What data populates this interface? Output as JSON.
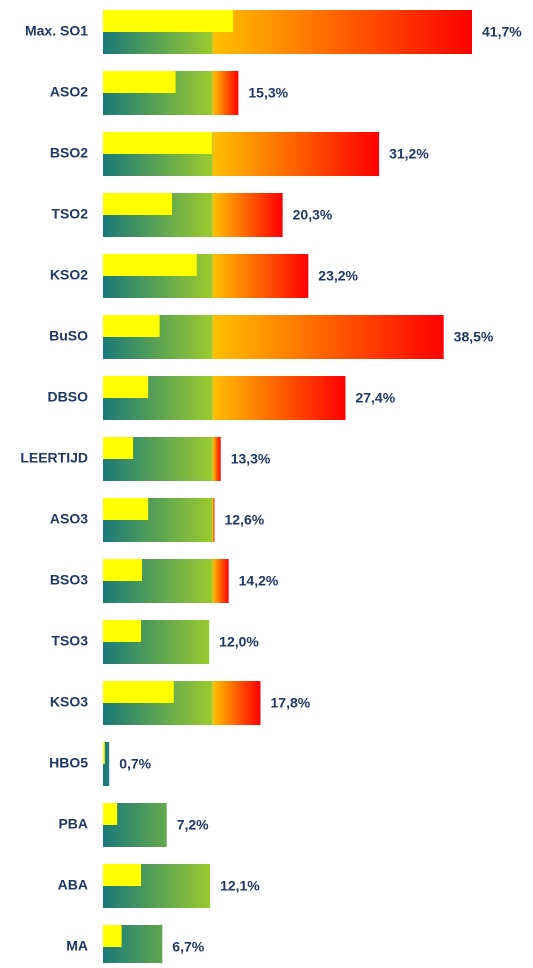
{
  "chart_data": {
    "type": "bar",
    "categories": [
      "Max. SO1",
      "ASO2",
      "BSO2",
      "TSO2",
      "KSO2",
      "BuSO",
      "DBSO",
      "LEERTIJD",
      "ASO3",
      "BSO3",
      "TSO3",
      "KSO3",
      "HBO5",
      "PBA",
      "ABA",
      "MA"
    ],
    "values": [
      41.7,
      15.3,
      31.2,
      20.3,
      23.2,
      38.5,
      27.4,
      13.3,
      12.6,
      14.2,
      12.0,
      17.8,
      0.7,
      7.2,
      12.1,
      6.7
    ],
    "value_labels": [
      "41,7%",
      "15,3%",
      "31,2%",
      "20,3%",
      "23,2%",
      "38,5%",
      "27,4%",
      "13,3%",
      "12,6%",
      "14,2%",
      "12,0%",
      "17,8%",
      "0,7%",
      "7,2%",
      "12,1%",
      "6,7%"
    ],
    "inner_values": [
      14.7,
      8.2,
      12.3,
      7.8,
      10.6,
      6.4,
      5.1,
      3.4,
      5.1,
      4.4,
      4.3,
      8.0,
      0.2,
      1.6,
      4.3,
      2.1
    ],
    "color_break": 12.4,
    "colors": {
      "low_start": "#1a7a7a",
      "low_end": "#9bcb2c",
      "high_start": "#ffc000",
      "high_end": "#ff0000",
      "inner": "#ffff00",
      "text": "#1f3864"
    }
  }
}
